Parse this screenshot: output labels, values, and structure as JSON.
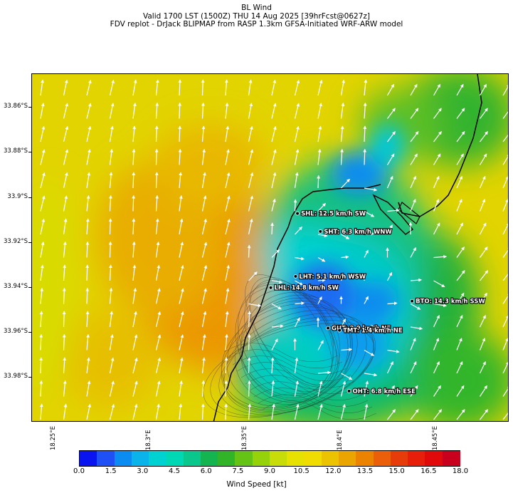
{
  "title": {
    "line1": "BL Wind",
    "line2": "Valid 1700 LST (1500Z) THU 14 Aug 2025 [39hrFcst@0627z]",
    "line3": "FDV replot - DrJack BLIPMAP from RASP 1.3km GFSA-Initiated WRF-ARW model"
  },
  "map": {
    "lon_range": [
      18.238,
      18.488
    ],
    "lat_range": [
      -34.0,
      -33.845
    ],
    "lat_ticks": [
      {
        "value": -33.86,
        "label": "33.86°S"
      },
      {
        "value": -33.88,
        "label": "33.88°S"
      },
      {
        "value": -33.9,
        "label": "33.9°S"
      },
      {
        "value": -33.92,
        "label": "33.92°S"
      },
      {
        "value": -33.94,
        "label": "33.94°S"
      },
      {
        "value": -33.96,
        "label": "33.96°S"
      },
      {
        "value": -33.98,
        "label": "33.98°S"
      }
    ],
    "lon_ticks": [
      {
        "value": 18.25,
        "label": "18.25°E"
      },
      {
        "value": 18.3,
        "label": "18.3°E"
      },
      {
        "value": 18.35,
        "label": "18.35°E"
      },
      {
        "value": 18.4,
        "label": "18.4°E"
      },
      {
        "value": 18.45,
        "label": "18.45°E"
      }
    ],
    "stations": [
      {
        "id": "SHL",
        "label": "SHL: 12.5 km/h SW",
        "lon": 18.377,
        "lat": -33.907
      },
      {
        "id": "SHT",
        "label": "SHT: 6.3 km/h WNW",
        "lon": 18.389,
        "lat": -33.915
      },
      {
        "id": "LHT",
        "label": "LHT: 5.1 km/h WSW",
        "lon": 18.376,
        "lat": -33.935
      },
      {
        "id": "LHL",
        "label": "LHL: 14.8 km/h SW",
        "lon": 18.363,
        "lat": -33.94
      },
      {
        "id": "BTO",
        "label": "BTO: 14.3 km/h SSW",
        "lon": 18.437,
        "lat": -33.946
      },
      {
        "id": "GUT",
        "label": "GUT: 2.9 km/h NE",
        "lon": 18.393,
        "lat": -33.958
      },
      {
        "id": "TMT",
        "label": "TMT: 1.4 km/h NE",
        "lon": 18.399,
        "lat": -33.959
      },
      {
        "id": "OHT",
        "label": "OHT: 6.8 km/h ESE",
        "lon": 18.404,
        "lat": -33.986
      }
    ]
  },
  "colorbar": {
    "label": "Wind Speed [kt]",
    "min": 0,
    "max": 18,
    "ticks": [
      "0.0",
      "1.5",
      "3.0",
      "4.5",
      "6.0",
      "7.5",
      "9.0",
      "10.5",
      "12.0",
      "13.5",
      "15.0",
      "16.5",
      "18.0"
    ],
    "colors": [
      "#0a14f0",
      "#1e50f5",
      "#0a8cf0",
      "#0ab4eb",
      "#00d2d2",
      "#00d7b4",
      "#0ac88c",
      "#14b450",
      "#32b428",
      "#64c314",
      "#96d20a",
      "#c8dc0a",
      "#e6e100",
      "#f0dc00",
      "#ebc300",
      "#eba500",
      "#eb8200",
      "#eb5f0a",
      "#e63c0a",
      "#e61e0a",
      "#e10a0a",
      "#c8001e"
    ]
  }
}
